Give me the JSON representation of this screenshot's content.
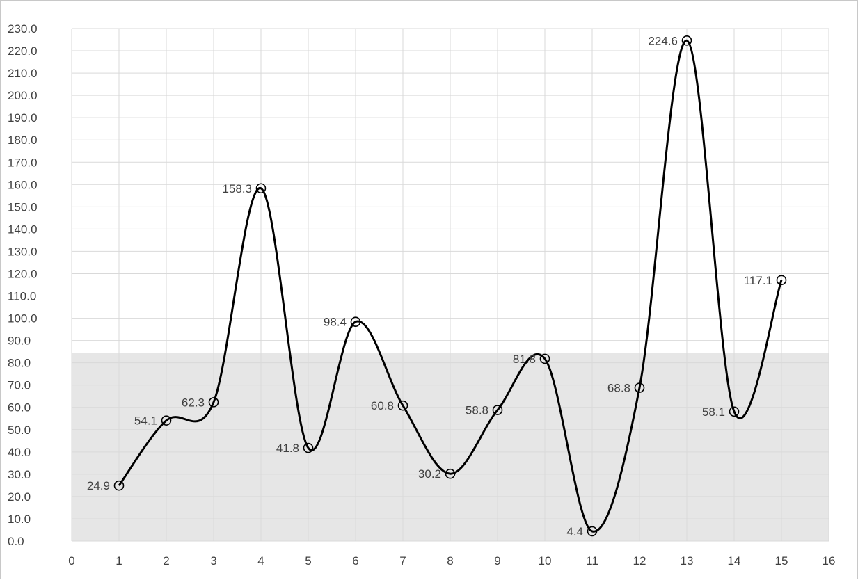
{
  "chart_data": {
    "type": "line",
    "title": "",
    "xlabel": "",
    "ylabel": "",
    "xlim": [
      0,
      16
    ],
    "ylim": [
      0,
      230
    ],
    "x_tick_step": 1,
    "y_tick_step": 10,
    "y_tick_decimals": 1,
    "grid": true,
    "smooth": true,
    "background_band": {
      "from": 0,
      "to": 84.5,
      "color": "#e6e6e6"
    },
    "series": [
      {
        "color": "#000000",
        "marker": "open-circle",
        "points": [
          {
            "x": 1,
            "y": 24.9,
            "label": "24.9",
            "label_side": "left"
          },
          {
            "x": 2,
            "y": 54.1,
            "label": "54.1",
            "label_side": "left"
          },
          {
            "x": 3,
            "y": 62.3,
            "label": "62.3",
            "label_side": "left"
          },
          {
            "x": 4,
            "y": 158.3,
            "label": "158.3",
            "label_side": "left"
          },
          {
            "x": 5,
            "y": 41.8,
            "label": "41.8",
            "label_side": "left"
          },
          {
            "x": 6,
            "y": 98.4,
            "label": "98.4",
            "label_side": "left"
          },
          {
            "x": 7,
            "y": 60.8,
            "label": "60.8",
            "label_side": "left"
          },
          {
            "x": 8,
            "y": 30.2,
            "label": "30.2",
            "label_side": "left"
          },
          {
            "x": 9,
            "y": 58.8,
            "label": "58.8",
            "label_side": "left"
          },
          {
            "x": 10,
            "y": 81.8,
            "label": "81.8",
            "label_side": "left"
          },
          {
            "x": 11,
            "y": 4.4,
            "label": "4.4",
            "label_side": "left"
          },
          {
            "x": 12,
            "y": 68.8,
            "label": "68.8",
            "label_side": "left"
          },
          {
            "x": 13,
            "y": 224.6,
            "label": "224.6",
            "label_side": "left"
          },
          {
            "x": 14,
            "y": 58.1,
            "label": "58.1",
            "label_side": "left"
          },
          {
            "x": 15,
            "y": 117.1,
            "label": "117.1",
            "label_side": "left"
          }
        ]
      }
    ]
  }
}
